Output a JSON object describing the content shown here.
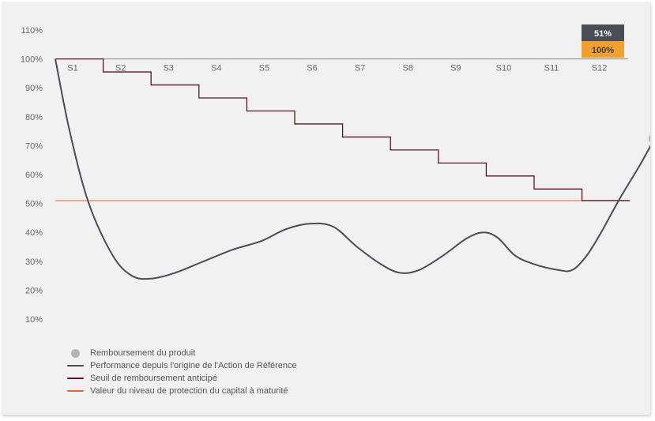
{
  "chart_data": {
    "type": "line",
    "y_ticks": [
      "110%",
      "100%",
      "90%",
      "80%",
      "70%",
      "60%",
      "50%",
      "40%",
      "30%",
      "20%",
      "10%"
    ],
    "ylim": [
      10,
      110
    ],
    "categories": [
      "S1",
      "S2",
      "S3",
      "S4",
      "S5",
      "S6",
      "S7",
      "S8",
      "S9",
      "S10",
      "S11",
      "S12"
    ],
    "series": [
      {
        "name": "Performance depuis l'origine de l'Action de Référence",
        "color": "#4a4c56",
        "points": [
          [
            0.0,
            100
          ],
          [
            0.3,
            75
          ],
          [
            0.7,
            50
          ],
          [
            1.2,
            32
          ],
          [
            1.6,
            25
          ],
          [
            2.0,
            24
          ],
          [
            2.5,
            26
          ],
          [
            3.1,
            30
          ],
          [
            3.7,
            34
          ],
          [
            4.3,
            37
          ],
          [
            4.8,
            41
          ],
          [
            5.3,
            43
          ],
          [
            5.8,
            42
          ],
          [
            6.3,
            35
          ],
          [
            6.8,
            29
          ],
          [
            7.2,
            26
          ],
          [
            7.6,
            27
          ],
          [
            8.1,
            32
          ],
          [
            8.6,
            38
          ],
          [
            8.95,
            40
          ],
          [
            9.25,
            38
          ],
          [
            9.6,
            32
          ],
          [
            10.0,
            29
          ],
          [
            10.5,
            27
          ],
          [
            10.8,
            27
          ],
          [
            11.1,
            32
          ],
          [
            11.4,
            40
          ],
          [
            11.8,
            52
          ],
          [
            12.2,
            63
          ],
          [
            12.5,
            72
          ]
        ]
      },
      {
        "name": "Seuil de remboursement anticipé",
        "color": "#5b1520",
        "steps": [
          {
            "from": 0.0,
            "to": 1.0,
            "value": 100
          },
          {
            "from": 1.0,
            "to": 2.0,
            "value": 95.5
          },
          {
            "from": 2.0,
            "to": 3.0,
            "value": 91
          },
          {
            "from": 3.0,
            "to": 4.0,
            "value": 86.5
          },
          {
            "from": 4.0,
            "to": 5.0,
            "value": 82
          },
          {
            "from": 5.0,
            "to": 6.0,
            "value": 77.5
          },
          {
            "from": 6.0,
            "to": 7.0,
            "value": 73
          },
          {
            "from": 7.0,
            "to": 8.0,
            "value": 68.5
          },
          {
            "from": 8.0,
            "to": 9.0,
            "value": 64
          },
          {
            "from": 9.0,
            "to": 10.0,
            "value": 59.5
          },
          {
            "from": 10.0,
            "to": 11.0,
            "value": 55
          },
          {
            "from": 11.0,
            "to": 12.0,
            "value": 51
          }
        ]
      },
      {
        "name": "Valeur du niveau de protection du capital à maturité",
        "color": "#e06a2c",
        "value": 51
      }
    ],
    "redemption_point": {
      "name": "Remboursement du produit",
      "x": 12.5,
      "value": 72.5,
      "color": "#b5b5b5"
    },
    "badges": [
      {
        "text": "51%",
        "bg": "#4a4c56",
        "fg": "#ffffff"
      },
      {
        "text": "100%",
        "bg": "#f0a02e",
        "fg": "#4a3a1a"
      }
    ],
    "legend_position": "bottom-left",
    "grid": false
  }
}
